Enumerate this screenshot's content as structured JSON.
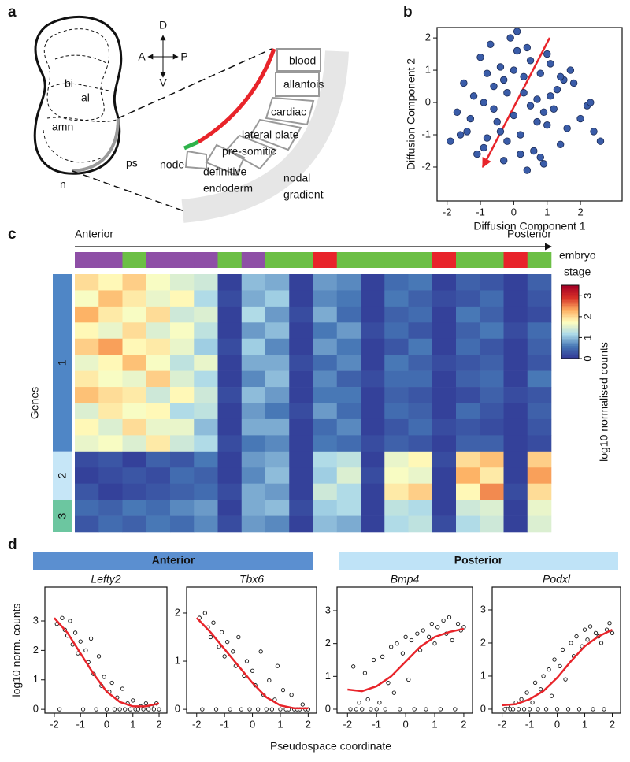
{
  "panel_labels": [
    "a",
    "b",
    "c",
    "d"
  ],
  "diagram": {
    "axes": {
      "D": "D",
      "A": "A",
      "P": "P",
      "V": "V"
    },
    "regions": [
      "bi",
      "al",
      "amn",
      "ps",
      "n"
    ],
    "tissues": [
      "blood",
      "allantois",
      "cardiac",
      "lateral plate",
      "pre-somitic",
      "node"
    ],
    "definitive_endoderm": [
      "definitive",
      "endoderm"
    ],
    "nodal_gradient": [
      "nodal",
      "gradient"
    ]
  },
  "panel_d": {
    "groups": [
      {
        "label": "Anterior",
        "color": "#5b8fd0"
      },
      {
        "label": "Posterior",
        "color": "#bfe3f7"
      }
    ],
    "x_label": "Pseudospace coordinate",
    "y_label": "log10 norm. counts"
  },
  "chart_data": [
    {
      "type": "scatter",
      "x_label": "Diffusion Component 1",
      "y_label": "Diffusion Component 2",
      "xlim": [
        -2.3,
        3.25
      ],
      "ylim": [
        -3.05,
        2.32
      ],
      "xticks": [
        -2,
        -1,
        0,
        1,
        2
      ],
      "yticks": [
        -2,
        -1,
        0,
        1,
        2
      ],
      "color": "#3a5ca8",
      "filled": true,
      "x": [
        -1.9,
        -1.7,
        -1.5,
        -1.4,
        -1.2,
        -1.1,
        -1.0,
        -0.9,
        -0.8,
        -0.7,
        -0.6,
        -0.5,
        -0.4,
        -0.3,
        -0.2,
        -0.1,
        0.0,
        0.1,
        0.2,
        0.3,
        0.4,
        0.5,
        0.6,
        0.7,
        0.8,
        0.9,
        1.0,
        1.1,
        1.2,
        1.3,
        1.4,
        1.5,
        1.6,
        1.8,
        2.0,
        2.2,
        2.4,
        2.6,
        -1.3,
        -0.9,
        -0.6,
        -0.3,
        0.0,
        0.2,
        0.5,
        0.8,
        1.1,
        1.4,
        -0.8,
        -0.4,
        0.1,
        0.4,
        0.7,
        1.0,
        -1.6,
        -0.2,
        0.3,
        0.9,
        1.7,
        2.3
      ],
      "values": [
        -1.2,
        -0.3,
        0.6,
        -0.9,
        0.2,
        -1.6,
        1.4,
        0.0,
        -1.1,
        1.8,
        0.5,
        -0.6,
        1.1,
        -1.8,
        0.3,
        2.0,
        -0.4,
        1.6,
        -1.0,
        0.8,
        -2.1,
        1.3,
        -1.5,
        0.1,
        0.9,
        -1.9,
        -0.7,
        1.2,
        -0.2,
        0.4,
        -1.3,
        0.7,
        -0.8,
        0.6,
        -0.5,
        -0.1,
        -0.9,
        -1.2,
        -0.5,
        -1.4,
        -0.2,
        0.7,
        1.0,
        -1.6,
        -0.1,
        -1.7,
        0.2,
        0.8,
        0.9,
        -0.9,
        2.2,
        1.7,
        -0.6,
        1.5,
        -1.0,
        -1.2,
        0.3,
        -0.3,
        1.0,
        0.0
      ]
    },
    {
      "type": "heatmap",
      "x_start_label": "Anterior",
      "x_end_label": "Posterior",
      "stage_label": [
        "embryo",
        "stage"
      ],
      "y_label": "Genes",
      "colorbar_label": "log10 normalised counts",
      "zlim": [
        0,
        3.5
      ],
      "zticks": [
        0,
        1,
        2,
        3
      ],
      "colorscale": [
        "#313695",
        "#4575b4",
        "#abd9e9",
        "#ffffbf",
        "#fdae61",
        "#d73027",
        "#a50026"
      ],
      "stage_colors": [
        "#8e4fa6",
        "#8e4fa6",
        "#6cbf45",
        "#8e4fa6",
        "#8e4fa6",
        "#8e4fa6",
        "#6cbf45",
        "#8e4fa6",
        "#6cbf45",
        "#6cbf45",
        "#e8242a",
        "#6cbf45",
        "#6cbf45",
        "#6cbf45",
        "#6cbf45",
        "#e8242a",
        "#6cbf45",
        "#6cbf45",
        "#e8242a",
        "#6cbf45"
      ],
      "row_groups": [
        "1",
        "1",
        "1",
        "1",
        "1",
        "1",
        "1",
        "1",
        "1",
        "1",
        "1",
        "2",
        "2",
        "2",
        "3",
        "3"
      ],
      "group_colors": [
        "#4f86c6",
        "#c6e6f7",
        "#6cc6a0"
      ],
      "values": [
        [
          2.0,
          1.8,
          2.1,
          1.7,
          1.5,
          1.4,
          0.1,
          1.0,
          0.9,
          0.1,
          0.8,
          0.7,
          0.1,
          0.5,
          0.6,
          0.1,
          0.4,
          0.3,
          0.1,
          0.4
        ],
        [
          1.7,
          2.2,
          1.9,
          1.6,
          1.8,
          1.2,
          0.2,
          0.9,
          1.1,
          0.1,
          0.7,
          0.6,
          0.1,
          0.6,
          0.4,
          0.2,
          0.3,
          0.5,
          0.1,
          0.3
        ],
        [
          2.3,
          1.9,
          1.7,
          2.0,
          1.4,
          1.5,
          0.1,
          1.2,
          0.8,
          0.2,
          0.9,
          0.5,
          0.1,
          0.4,
          0.5,
          0.1,
          0.6,
          0.4,
          0.1,
          0.2
        ],
        [
          1.8,
          1.6,
          2.0,
          1.5,
          1.7,
          1.3,
          0.1,
          0.8,
          1.0,
          0.1,
          0.6,
          0.8,
          0.2,
          0.5,
          0.3,
          0.1,
          0.4,
          0.6,
          0.2,
          0.5
        ],
        [
          2.1,
          2.4,
          1.8,
          1.9,
          1.6,
          1.1,
          0.2,
          1.1,
          0.7,
          0.1,
          0.8,
          0.6,
          0.1,
          0.3,
          0.6,
          0.1,
          0.5,
          0.3,
          0.1,
          0.4
        ],
        [
          1.6,
          1.8,
          2.2,
          1.7,
          1.3,
          1.6,
          0.1,
          0.9,
          0.9,
          0.2,
          0.5,
          0.7,
          0.1,
          0.6,
          0.4,
          0.2,
          0.3,
          0.4,
          0.1,
          0.3
        ],
        [
          1.9,
          1.7,
          1.6,
          2.1,
          1.5,
          1.2,
          0.1,
          0.7,
          1.0,
          0.1,
          0.7,
          0.4,
          0.2,
          0.5,
          0.5,
          0.1,
          0.4,
          0.5,
          0.1,
          0.6
        ],
        [
          2.2,
          2.0,
          1.9,
          1.4,
          1.8,
          1.4,
          0.2,
          1.0,
          0.8,
          0.1,
          0.6,
          0.6,
          0.1,
          0.4,
          0.3,
          0.1,
          0.2,
          0.4,
          0.2,
          0.3
        ],
        [
          1.5,
          1.9,
          1.7,
          1.8,
          1.2,
          1.3,
          0.1,
          0.8,
          0.6,
          0.2,
          0.8,
          0.5,
          0.1,
          0.5,
          0.4,
          0.1,
          0.5,
          0.3,
          0.1,
          0.4
        ],
        [
          1.8,
          1.5,
          2.0,
          1.6,
          1.6,
          1.0,
          0.1,
          0.9,
          0.9,
          0.1,
          0.5,
          0.7,
          0.1,
          0.3,
          0.5,
          0.2,
          0.3,
          0.2,
          0.1,
          0.3
        ],
        [
          1.6,
          1.7,
          1.5,
          1.9,
          1.4,
          1.2,
          0.2,
          0.6,
          0.7,
          0.1,
          0.6,
          0.5,
          0.2,
          0.4,
          0.3,
          0.1,
          0.4,
          0.4,
          0.1,
          0.2
        ],
        [
          0.2,
          0.3,
          0.1,
          0.4,
          0.3,
          0.6,
          0.1,
          0.8,
          0.9,
          0.1,
          1.2,
          1.3,
          0.1,
          1.6,
          1.8,
          0.2,
          2.0,
          2.2,
          0.1,
          2.1
        ],
        [
          0.1,
          0.2,
          0.3,
          0.2,
          0.5,
          0.4,
          0.1,
          0.7,
          1.0,
          0.1,
          1.1,
          1.5,
          0.2,
          1.7,
          1.6,
          0.1,
          2.3,
          1.9,
          0.1,
          2.4
        ],
        [
          0.3,
          0.1,
          0.2,
          0.3,
          0.4,
          0.5,
          0.2,
          0.9,
          0.8,
          0.1,
          1.4,
          1.2,
          0.1,
          1.9,
          2.1,
          0.1,
          1.8,
          2.5,
          0.2,
          2.0
        ],
        [
          0.5,
          0.4,
          0.6,
          0.5,
          0.7,
          0.8,
          0.1,
          0.9,
          1.0,
          0.2,
          1.1,
          1.2,
          0.1,
          1.3,
          1.2,
          0.1,
          1.4,
          1.5,
          0.1,
          1.6
        ],
        [
          0.3,
          0.5,
          0.4,
          0.6,
          0.5,
          0.7,
          0.2,
          0.8,
          0.7,
          0.1,
          1.0,
          0.9,
          0.1,
          1.2,
          1.3,
          0.2,
          1.2,
          1.4,
          0.1,
          1.5
        ]
      ]
    },
    {
      "type": "scatter",
      "title": "Lefty2",
      "xlim": [
        -2.36,
        2.3
      ],
      "ylim": [
        -0.13,
        4.15
      ],
      "xticks": [
        -2,
        -1,
        0,
        1,
        2
      ],
      "yticks": [
        0,
        1,
        2,
        3
      ],
      "color": "#111111",
      "filled": false,
      "x": [
        -1.9,
        -1.8,
        -1.7,
        -1.6,
        -1.5,
        -1.4,
        -1.3,
        -1.2,
        -1.1,
        -1.0,
        -0.9,
        -0.8,
        -0.7,
        -0.6,
        -0.5,
        -0.4,
        -0.3,
        -0.2,
        -0.1,
        0.0,
        0.1,
        0.2,
        0.3,
        0.4,
        0.5,
        0.6,
        0.7,
        0.8,
        0.9,
        1.0,
        1.1,
        1.2,
        1.3,
        1.4,
        1.5,
        1.6,
        1.7,
        1.8,
        1.9,
        2.0
      ],
      "values": [
        2.9,
        0,
        3.1,
        2.7,
        2.5,
        3.0,
        2.2,
        2.6,
        1.9,
        2.3,
        0,
        2.0,
        1.6,
        2.4,
        1.2,
        0,
        1.8,
        0.8,
        1.1,
        0,
        0.6,
        0.9,
        0,
        0.4,
        0,
        0.7,
        0,
        0.2,
        0,
        0.3,
        0,
        0,
        0.1,
        0,
        0.2,
        0,
        0.1,
        0,
        0.2,
        0
      ],
      "fit": {
        "color": "#e8242a",
        "x": [
          -2,
          -1.5,
          -1,
          -0.5,
          0,
          0.5,
          1,
          1.5,
          2
        ],
        "values": [
          3.1,
          2.6,
          1.9,
          1.2,
          0.6,
          0.25,
          0.1,
          0.1,
          0.2
        ]
      }
    },
    {
      "type": "scatter",
      "title": "Tbx6",
      "xlim": [
        -2.36,
        2.3
      ],
      "ylim": [
        -0.08,
        2.54
      ],
      "xticks": [
        -2,
        -1,
        0,
        1,
        2
      ],
      "yticks": [
        0,
        1,
        2
      ],
      "color": "#111111",
      "filled": false,
      "x": [
        -1.9,
        -1.8,
        -1.7,
        -1.6,
        -1.5,
        -1.4,
        -1.3,
        -1.2,
        -1.1,
        -1.0,
        -0.9,
        -0.8,
        -0.7,
        -0.6,
        -0.5,
        -0.4,
        -0.3,
        -0.2,
        -0.1,
        0.0,
        0.1,
        0.2,
        0.3,
        0.4,
        0.5,
        0.6,
        0.7,
        0.8,
        0.9,
        1.0,
        1.1,
        1.2,
        1.3,
        1.4,
        1.5,
        1.6,
        1.7,
        1.8,
        1.9,
        2.0
      ],
      "values": [
        1.9,
        0,
        2.0,
        1.7,
        1.5,
        1.8,
        0,
        1.3,
        1.6,
        1.1,
        1.4,
        0,
        1.2,
        0.9,
        1.5,
        0,
        0.7,
        1.0,
        0,
        0.8,
        0.5,
        0,
        1.2,
        0.3,
        0,
        0.6,
        0,
        0.2,
        0.9,
        0,
        0.4,
        0,
        0,
        0.3,
        0,
        0,
        0,
        0.1,
        0,
        0
      ],
      "fit": {
        "color": "#e8242a",
        "x": [
          -2,
          -1.5,
          -1,
          -0.5,
          0,
          0.5,
          1,
          1.5,
          2
        ],
        "values": [
          1.9,
          1.6,
          1.25,
          0.9,
          0.55,
          0.25,
          0.08,
          0.02,
          0.02
        ]
      }
    },
    {
      "type": "scatter",
      "title": "Bmp4",
      "xlim": [
        -2.36,
        2.3
      ],
      "ylim": [
        -0.12,
        3.72
      ],
      "xticks": [
        -2,
        -1,
        0,
        1,
        2
      ],
      "yticks": [
        0,
        1,
        2,
        3
      ],
      "color": "#111111",
      "filled": false,
      "x": [
        -1.9,
        -1.8,
        -1.7,
        -1.6,
        -1.5,
        -1.4,
        -1.3,
        -1.2,
        -1.1,
        -1.0,
        -0.9,
        -0.8,
        -0.7,
        -0.6,
        -0.5,
        -0.4,
        -0.3,
        -0.2,
        -0.1,
        0.0,
        0.1,
        0.2,
        0.3,
        0.4,
        0.5,
        0.6,
        0.7,
        0.8,
        0.9,
        1.0,
        1.1,
        1.2,
        1.3,
        1.4,
        1.5,
        1.6,
        1.7,
        1.8,
        1.9,
        2.0
      ],
      "values": [
        0,
        1.3,
        0,
        0.2,
        0,
        1.1,
        0.3,
        0,
        1.5,
        0,
        0.2,
        1.6,
        0,
        0.8,
        1.9,
        0.5,
        2.0,
        0,
        1.7,
        2.2,
        0.9,
        2.1,
        0,
        2.3,
        1.8,
        2.4,
        0,
        2.2,
        2.6,
        2.0,
        2.5,
        0,
        2.7,
        2.3,
        2.8,
        2.1,
        0,
        2.6,
        2.4,
        2.5
      ],
      "fit": {
        "color": "#e8242a",
        "x": [
          -2,
          -1.5,
          -1,
          -0.5,
          0,
          0.5,
          1,
          1.5,
          2
        ],
        "values": [
          0.6,
          0.55,
          0.7,
          1.0,
          1.45,
          1.9,
          2.2,
          2.35,
          2.45
        ]
      }
    },
    {
      "type": "scatter",
      "title": "Podxl",
      "xlim": [
        -2.36,
        2.3
      ],
      "ylim": [
        -0.12,
        3.69
      ],
      "xticks": [
        -2,
        -1,
        0,
        1,
        2
      ],
      "yticks": [
        0,
        1,
        2,
        3
      ],
      "color": "#111111",
      "filled": false,
      "x": [
        -1.9,
        -1.8,
        -1.7,
        -1.6,
        -1.5,
        -1.4,
        -1.3,
        -1.2,
        -1.1,
        -1.0,
        -0.9,
        -0.8,
        -0.7,
        -0.6,
        -0.5,
        -0.4,
        -0.3,
        -0.2,
        -0.1,
        0.0,
        0.1,
        0.2,
        0.3,
        0.4,
        0.5,
        0.6,
        0.7,
        0.8,
        0.9,
        1.0,
        1.1,
        1.2,
        1.3,
        1.4,
        1.5,
        1.6,
        1.7,
        1.8,
        1.9,
        2.0
      ],
      "values": [
        0,
        0.1,
        0,
        0,
        0.2,
        0,
        0.3,
        0,
        0.5,
        0,
        0.2,
        0.8,
        0,
        0.6,
        1.0,
        0,
        1.2,
        0.4,
        1.5,
        0,
        1.3,
        1.8,
        0.9,
        0,
        2.0,
        1.6,
        2.2,
        0,
        1.9,
        2.4,
        2.1,
        2.5,
        0,
        2.3,
        2.2,
        2.0,
        0,
        2.4,
        2.6,
        2.3
      ],
      "fit": {
        "color": "#e8242a",
        "x": [
          -2,
          -1.5,
          -1,
          -0.5,
          0,
          0.5,
          1,
          1.5,
          2
        ],
        "values": [
          0.12,
          0.15,
          0.3,
          0.55,
          0.95,
          1.45,
          1.9,
          2.2,
          2.4
        ]
      }
    }
  ]
}
